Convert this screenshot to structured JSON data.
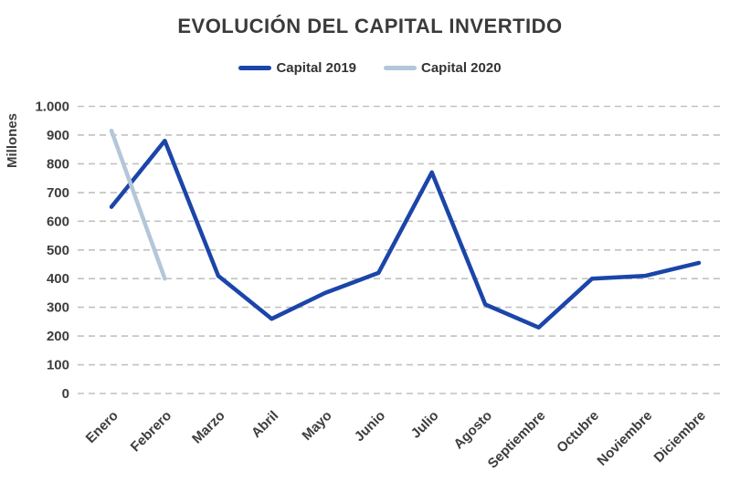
{
  "chart_data": {
    "type": "line",
    "title": "EVOLUCIÓN DEL CAPITAL INVERTIDO",
    "ylabel": "Millones",
    "xlabel": "",
    "categories": [
      "Enero",
      "Febrero",
      "Marzo",
      "Abril",
      "Mayo",
      "Junio",
      "Julio",
      "Agosto",
      "Septiembre",
      "Octubre",
      "Noviembre",
      "Diciembre"
    ],
    "series": [
      {
        "name": "Capital 2019",
        "color": "#1b45a8",
        "values": [
          650,
          880,
          410,
          260,
          350,
          420,
          770,
          310,
          230,
          400,
          410,
          455
        ]
      },
      {
        "name": "Capital 2020",
        "color": "#b4c6d9",
        "values": [
          915,
          400,
          null,
          null,
          null,
          null,
          null,
          null,
          null,
          null,
          null,
          null
        ]
      }
    ],
    "ylim": [
      0,
      1000
    ],
    "y_ticks": [
      {
        "label": "1.000",
        "value": 1000
      },
      {
        "label": "900",
        "value": 900
      },
      {
        "label": "800",
        "value": 800
      },
      {
        "label": "700",
        "value": 700
      },
      {
        "label": "600",
        "value": 600
      },
      {
        "label": "500",
        "value": 500
      },
      {
        "label": "400",
        "value": 400
      },
      {
        "label": "300",
        "value": 300
      },
      {
        "label": "200",
        "value": 200
      },
      {
        "label": "100",
        "value": 100
      },
      {
        "label": "0",
        "value": 0
      }
    ],
    "grid": "horizontal-dashed",
    "legend_position": "top",
    "x_label_rotation_deg": 45
  },
  "colors": {
    "background": "#ffffff",
    "grid": "#c1c1c1",
    "text": "#3d3d3d",
    "series_2019": "#1b45a8",
    "series_2020": "#b4c6d9"
  }
}
